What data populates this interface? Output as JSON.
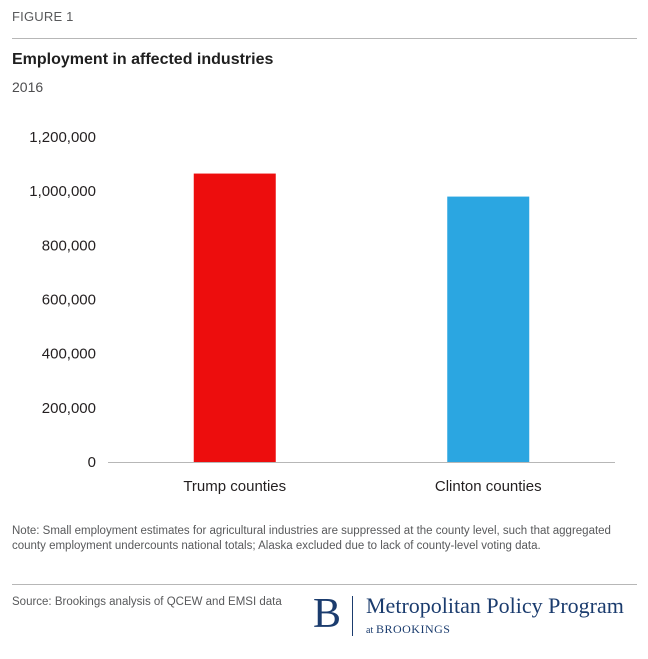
{
  "figure": {
    "label": "FIGURE 1"
  },
  "chart_data": {
    "type": "bar",
    "title": "Employment in affected industries",
    "subtitle": "2016",
    "categories": [
      "Trump counties",
      "Clinton counties"
    ],
    "values": [
      1065000,
      980000
    ],
    "ylim": [
      0,
      1200000
    ],
    "yticks": [
      0,
      200000,
      400000,
      600000,
      800000,
      1000000,
      1200000
    ],
    "ytick_labels": [
      "0",
      "200,000",
      "400,000",
      "600,000",
      "800,000",
      "1,000,000",
      "1,200,000"
    ],
    "colors": [
      "#ed0d0d",
      "#2ba6e1"
    ],
    "grid": false,
    "legend": "none"
  },
  "note": "Note: Small employment estimates for agricultural industries are suppressed at the county level, such that aggregated county employment undercounts national totals; Alaska excluded due to lack of county-level voting data.",
  "source": "Source: Brookings analysis of QCEW and EMSI data",
  "logo": {
    "letter": "B",
    "name": "Metropolitan Policy Program",
    "sub_at": "at",
    "sub_org": "BROOKINGS"
  }
}
